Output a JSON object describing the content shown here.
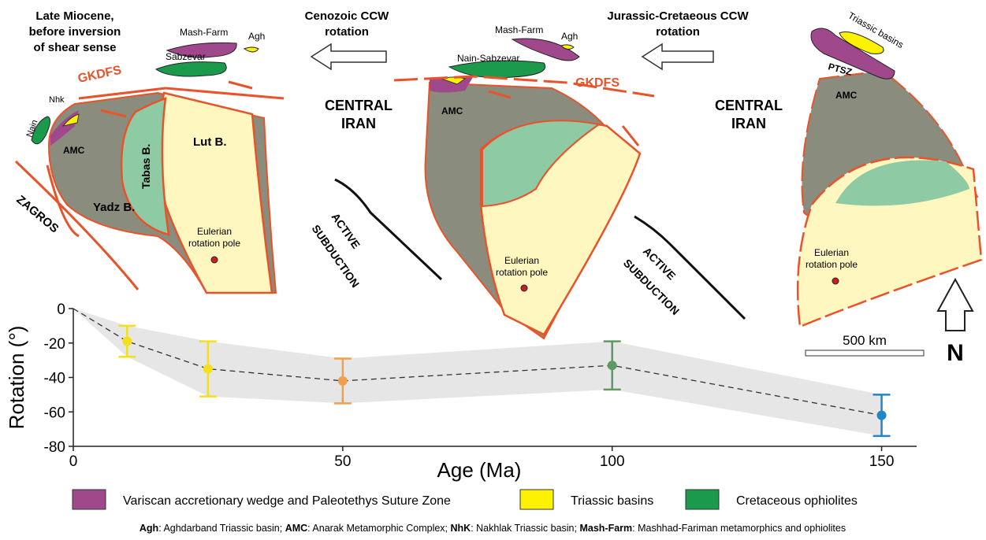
{
  "maps": {
    "left": {
      "title_lines": [
        "Late Miocene,",
        "before inversion",
        "of shear sense"
      ],
      "mash_farm": "Mash-Farm",
      "agh": "Agh",
      "sabzevar": "Sabzevar",
      "gkdfs": "GKDFS",
      "nhk": "Nhk",
      "nain": "Nain",
      "amc": "AMC",
      "tabas": "Tabas B.",
      "lut": "Lut B.",
      "yadz": "Yadz B.",
      "zagros": "ZAGROS",
      "pole_lines": [
        "Eulerian",
        "rotation pole"
      ]
    },
    "arrow1_lines": [
      "Cenozoic CCW",
      "rotation"
    ],
    "middle": {
      "mash_farm": "Mash-Farm",
      "agh": "Agh",
      "nain_sabzevar": "Nain-Sabzevar",
      "gkdfs": "GKDFS",
      "central_lines": [
        "CENTRAL",
        "IRAN"
      ],
      "amc": "AMC",
      "pole_lines": [
        "Eulerian",
        "rotation pole"
      ],
      "subduction_lines": [
        "ACTIVE",
        "SUBDUCTION"
      ]
    },
    "arrow2_lines": [
      "Jurassic-Cretaeous CCW",
      "rotation"
    ],
    "right": {
      "triassic": "Triassic basins",
      "ptsz": "PTSZ",
      "amc": "AMC",
      "central_lines": [
        "CENTRAL",
        "IRAN"
      ],
      "pole_lines": [
        "Eulerian",
        "rotation pole"
      ],
      "subduction_lines": [
        "ACTIVE",
        "SUBDUCTION"
      ],
      "scale": "500 km",
      "north": "N"
    }
  },
  "chart_data": {
    "type": "errorbar",
    "x_label": "Age (Ma)",
    "y_label": "Rotation (°)",
    "x": [
      0,
      10,
      25,
      50,
      100,
      150
    ],
    "values": [
      0,
      -19,
      -35,
      -42,
      -33,
      -62
    ],
    "errors": [
      null,
      9,
      16,
      13,
      14,
      12
    ],
    "point_colors": [
      null,
      "#f2df1d",
      "#f5e01e",
      "#f0a04b",
      "#5d9a63",
      "#1f87c6"
    ],
    "line_color": "#333333",
    "band_color": "#e6e6e6",
    "xlim": [
      0,
      156.5
    ],
    "ylim": [
      -80,
      0
    ],
    "xticks": [
      0,
      50,
      100,
      150
    ],
    "yticks": [
      0,
      -20,
      -40,
      -60,
      -80
    ]
  },
  "legend": [
    {
      "label": "Variscan accretionary wedge and Paleotethys Suture Zone",
      "color": "#a0488c"
    },
    {
      "label": "Triassic basins",
      "color": "#fff200"
    },
    {
      "label": "Cretaceous ophiolites",
      "color": "#1b9a4b"
    }
  ],
  "footnote": [
    {
      "term": "Agh",
      "definition": ": Aghdarband Triassic basin; "
    },
    {
      "term": "AMC",
      "definition": ": Anarak Metamorphic Complex; "
    },
    {
      "term": "NhK",
      "definition": ": Nakhlak Triassic basin; "
    },
    {
      "term": "Mash-Farm",
      "definition": ": Mashhad-Fariman metamorphics and ophiolites"
    }
  ]
}
